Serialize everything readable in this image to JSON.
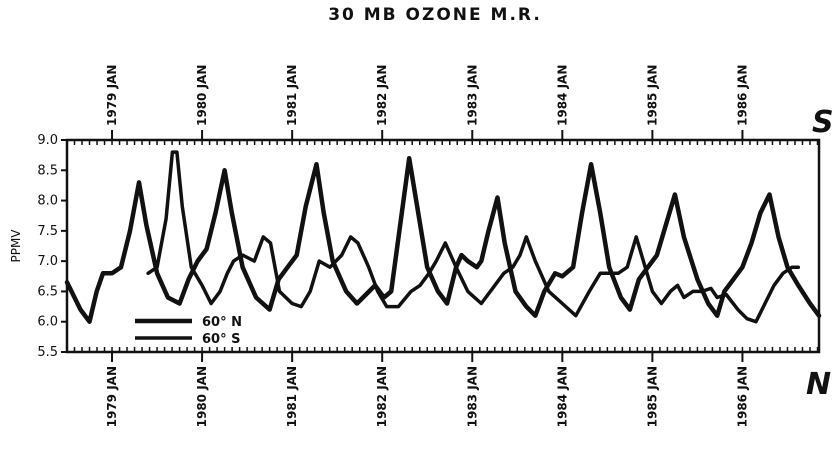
{
  "chart_data": {
    "type": "line",
    "title": "30 MB   OZONE M.R.",
    "ylabel": "PPMV",
    "ylim": [
      5.5,
      9.0
    ],
    "yticks": [
      "5.5",
      "6.0",
      "6.5",
      "7.0",
      "7.5",
      "8.0",
      "8.5",
      "9.0"
    ],
    "xlim": [
      1978.5,
      1986.85
    ],
    "top_axis": {
      "hemisphere_label": "S",
      "ticks": [
        {
          "x": 1979,
          "label": "1979 JAN"
        },
        {
          "x": 1980,
          "label": "1980 JAN"
        },
        {
          "x": 1981,
          "label": "1981 JAN"
        },
        {
          "x": 1982,
          "label": "1982 JAN"
        },
        {
          "x": 1983,
          "label": "1983 JAN"
        },
        {
          "x": 1984,
          "label": "1984 JAN"
        },
        {
          "x": 1985,
          "label": "1985 JAN"
        },
        {
          "x": 1986,
          "label": "1986 JAN"
        }
      ]
    },
    "bottom_axis": {
      "hemisphere_label": "N",
      "ticks": [
        {
          "x": 1979,
          "label": "1979 JAN"
        },
        {
          "x": 1980,
          "label": "1980 JAN"
        },
        {
          "x": 1981,
          "label": "1981 JAN"
        },
        {
          "x": 1982,
          "label": "1982 JAN"
        },
        {
          "x": 1983,
          "label": "1983 JAN"
        },
        {
          "x": 1984,
          "label": "1984 JAN"
        },
        {
          "x": 1985,
          "label": "1985 JAN"
        },
        {
          "x": 1986,
          "label": "1986 JAN"
        }
      ]
    },
    "series": [
      {
        "name": "60° N",
        "axis": "bottom",
        "points": [
          [
            1978.5,
            6.65
          ],
          [
            1978.65,
            6.2
          ],
          [
            1978.75,
            6.0
          ],
          [
            1978.83,
            6.5
          ],
          [
            1978.9,
            6.8
          ],
          [
            1979.0,
            6.8
          ],
          [
            1979.1,
            6.9
          ],
          [
            1979.2,
            7.5
          ],
          [
            1979.3,
            8.3
          ],
          [
            1979.38,
            7.6
          ],
          [
            1979.5,
            6.8
          ],
          [
            1979.62,
            6.4
          ],
          [
            1979.75,
            6.3
          ],
          [
            1979.85,
            6.7
          ],
          [
            1979.95,
            7.0
          ],
          [
            1980.05,
            7.2
          ],
          [
            1980.15,
            7.8
          ],
          [
            1980.25,
            8.5
          ],
          [
            1980.33,
            7.8
          ],
          [
            1980.45,
            6.9
          ],
          [
            1980.6,
            6.4
          ],
          [
            1980.75,
            6.2
          ],
          [
            1980.85,
            6.7
          ],
          [
            1980.95,
            6.9
          ],
          [
            1981.05,
            7.1
          ],
          [
            1981.15,
            7.9
          ],
          [
            1981.27,
            8.6
          ],
          [
            1981.35,
            7.8
          ],
          [
            1981.45,
            7.0
          ],
          [
            1981.6,
            6.5
          ],
          [
            1981.72,
            6.3
          ],
          [
            1981.82,
            6.45
          ],
          [
            1981.92,
            6.6
          ],
          [
            1982.02,
            6.4
          ],
          [
            1982.1,
            6.5
          ],
          [
            1982.2,
            7.6
          ],
          [
            1982.3,
            8.7
          ],
          [
            1982.4,
            7.8
          ],
          [
            1982.5,
            6.9
          ],
          [
            1982.62,
            6.5
          ],
          [
            1982.72,
            6.3
          ],
          [
            1982.82,
            6.9
          ],
          [
            1982.88,
            7.1
          ],
          [
            1982.95,
            7.0
          ],
          [
            1983.05,
            6.9
          ],
          [
            1983.1,
            7.0
          ],
          [
            1983.18,
            7.5
          ],
          [
            1983.28,
            8.05
          ],
          [
            1983.36,
            7.3
          ],
          [
            1983.48,
            6.5
          ],
          [
            1983.6,
            6.25
          ],
          [
            1983.7,
            6.1
          ],
          [
            1983.8,
            6.5
          ],
          [
            1983.92,
            6.8
          ],
          [
            1984.0,
            6.75
          ],
          [
            1984.12,
            6.9
          ],
          [
            1984.22,
            7.8
          ],
          [
            1984.32,
            8.6
          ],
          [
            1984.42,
            7.8
          ],
          [
            1984.52,
            6.9
          ],
          [
            1984.65,
            6.4
          ],
          [
            1984.75,
            6.2
          ],
          [
            1984.85,
            6.7
          ],
          [
            1984.95,
            6.9
          ],
          [
            1985.05,
            7.1
          ],
          [
            1985.15,
            7.6
          ],
          [
            1985.25,
            8.1
          ],
          [
            1985.35,
            7.4
          ],
          [
            1985.5,
            6.7
          ],
          [
            1985.62,
            6.3
          ],
          [
            1985.72,
            6.1
          ],
          [
            1985.8,
            6.5
          ],
          [
            1985.9,
            6.7
          ],
          [
            1986.0,
            6.9
          ],
          [
            1986.1,
            7.3
          ],
          [
            1986.2,
            7.8
          ],
          [
            1986.3,
            8.1
          ],
          [
            1986.4,
            7.4
          ],
          [
            1986.5,
            6.9
          ],
          [
            1986.62,
            6.6
          ],
          [
            1986.75,
            6.3
          ],
          [
            1986.85,
            6.1
          ]
        ]
      },
      {
        "name": "60° S",
        "axis": "top",
        "points": [
          [
            1979.4,
            6.8
          ],
          [
            1979.5,
            6.9
          ],
          [
            1979.6,
            7.7
          ],
          [
            1979.67,
            8.8
          ],
          [
            1979.72,
            8.8
          ],
          [
            1979.78,
            7.9
          ],
          [
            1979.88,
            6.9
          ],
          [
            1980.0,
            6.6
          ],
          [
            1980.1,
            6.3
          ],
          [
            1980.2,
            6.5
          ],
          [
            1980.28,
            6.8
          ],
          [
            1980.35,
            7.0
          ],
          [
            1980.45,
            7.1
          ],
          [
            1980.58,
            7.0
          ],
          [
            1980.68,
            7.4
          ],
          [
            1980.76,
            7.3
          ],
          [
            1980.86,
            6.5
          ],
          [
            1981.0,
            6.3
          ],
          [
            1981.1,
            6.25
          ],
          [
            1981.2,
            6.5
          ],
          [
            1981.3,
            7.0
          ],
          [
            1981.42,
            6.9
          ],
          [
            1981.55,
            7.1
          ],
          [
            1981.65,
            7.4
          ],
          [
            1981.73,
            7.3
          ],
          [
            1981.85,
            6.9
          ],
          [
            1981.95,
            6.5
          ],
          [
            1982.05,
            6.25
          ],
          [
            1982.18,
            6.25
          ],
          [
            1982.32,
            6.5
          ],
          [
            1982.42,
            6.6
          ],
          [
            1982.52,
            6.8
          ],
          [
            1982.6,
            7.0
          ],
          [
            1982.7,
            7.3
          ],
          [
            1982.82,
            6.9
          ],
          [
            1982.95,
            6.5
          ],
          [
            1983.1,
            6.3
          ],
          [
            1983.25,
            6.6
          ],
          [
            1983.35,
            6.8
          ],
          [
            1983.45,
            6.9
          ],
          [
            1983.53,
            7.1
          ],
          [
            1983.6,
            7.4
          ],
          [
            1983.7,
            7.0
          ],
          [
            1983.85,
            6.5
          ],
          [
            1984.0,
            6.3
          ],
          [
            1984.15,
            6.1
          ],
          [
            1984.3,
            6.5
          ],
          [
            1984.42,
            6.8
          ],
          [
            1984.52,
            6.8
          ],
          [
            1984.62,
            6.8
          ],
          [
            1984.72,
            6.9
          ],
          [
            1984.82,
            7.4
          ],
          [
            1984.9,
            7.0
          ],
          [
            1985.0,
            6.5
          ],
          [
            1985.1,
            6.3
          ],
          [
            1985.2,
            6.5
          ],
          [
            1985.28,
            6.6
          ],
          [
            1985.35,
            6.4
          ],
          [
            1985.45,
            6.5
          ],
          [
            1985.55,
            6.5
          ],
          [
            1985.65,
            6.55
          ],
          [
            1985.72,
            6.4
          ],
          [
            1985.82,
            6.45
          ],
          [
            1985.95,
            6.2
          ],
          [
            1986.05,
            6.05
          ],
          [
            1986.15,
            6.0
          ],
          [
            1986.25,
            6.3
          ],
          [
            1986.35,
            6.6
          ],
          [
            1986.45,
            6.8
          ],
          [
            1986.55,
            6.9
          ],
          [
            1986.62,
            6.9
          ]
        ]
      }
    ],
    "legend": {
      "placement": "lower-left"
    },
    "grid": false
  }
}
